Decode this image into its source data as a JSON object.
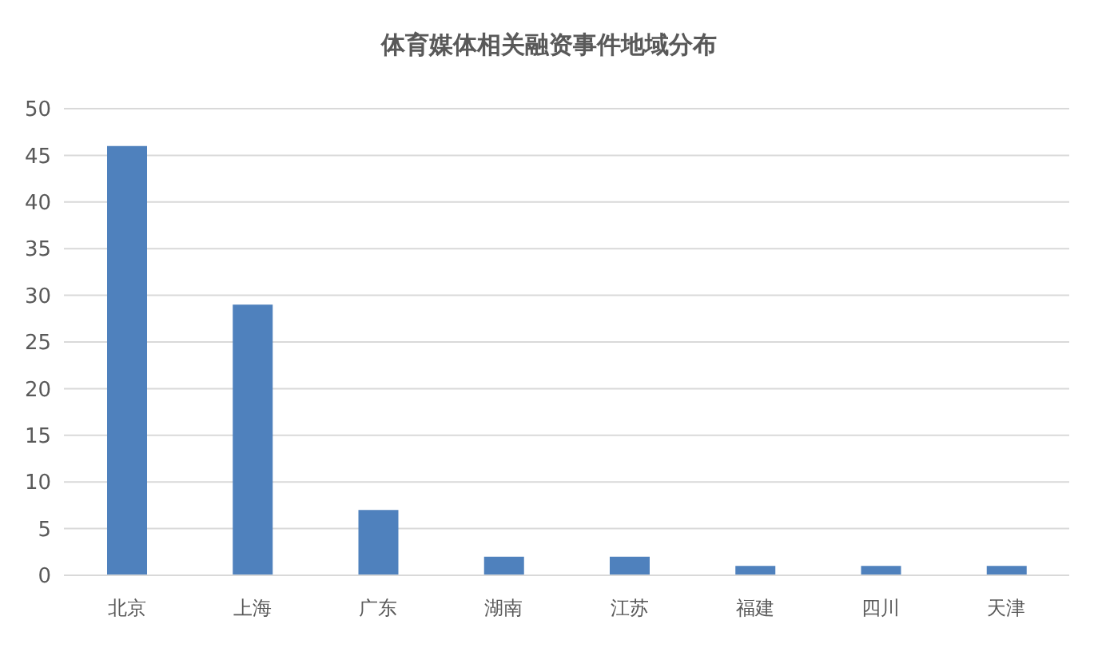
{
  "chart_data": {
    "type": "bar",
    "title": "体育媒体相关融资事件地域分布",
    "categories": [
      "北京",
      "上海",
      "广东",
      "湖南",
      "江苏",
      "福建",
      "四川",
      "天津"
    ],
    "values": [
      46,
      29,
      7,
      2,
      2,
      1,
      1,
      1
    ],
    "color": "#4f81bd",
    "ylim": [
      0,
      50
    ],
    "yticks": [
      0,
      5,
      10,
      15,
      20,
      25,
      30,
      35,
      40,
      45,
      50
    ],
    "grid": "y"
  }
}
